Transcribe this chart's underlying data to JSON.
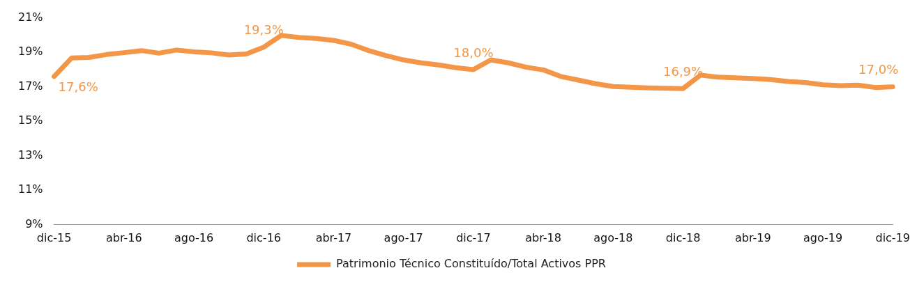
{
  "chart_data": {
    "type": "line",
    "categories": [
      "dic-15",
      null,
      null,
      null,
      "abr-16",
      null,
      null,
      null,
      "ago-16",
      null,
      null,
      null,
      "dic-16",
      null,
      null,
      null,
      "abr-17",
      null,
      null,
      null,
      "ago-17",
      null,
      null,
      null,
      "dic-17",
      null,
      null,
      null,
      "abr-18",
      null,
      null,
      null,
      "ago-18",
      null,
      null,
      null,
      "dic-18",
      null,
      null,
      null,
      "abr-19",
      null,
      null,
      null,
      "ago-19",
      null,
      null,
      null,
      "dic-19"
    ],
    "series": [
      {
        "name": "Patrimonio Técnico Constituído/Total Activos PPR",
        "color": "#f39647",
        "values": [
          17.6,
          18.67,
          18.7,
          18.87,
          18.98,
          19.1,
          18.95,
          19.13,
          19.03,
          18.97,
          18.84,
          18.9,
          19.3,
          19.98,
          19.86,
          19.8,
          19.69,
          19.47,
          19.1,
          18.81,
          18.56,
          18.39,
          18.27,
          18.11,
          18.0,
          18.56,
          18.39,
          18.14,
          17.98,
          17.6,
          17.39,
          17.18,
          17.02,
          16.98,
          16.94,
          16.92,
          16.9,
          17.68,
          17.56,
          17.52,
          17.48,
          17.42,
          17.31,
          17.25,
          17.12,
          17.07,
          17.1,
          16.96,
          17.0
        ],
        "value_labels": [
          "17,6%",
          null,
          null,
          null,
          null,
          null,
          null,
          null,
          null,
          null,
          null,
          null,
          "19,3%",
          null,
          null,
          null,
          null,
          null,
          null,
          null,
          null,
          null,
          null,
          null,
          "18,0%",
          null,
          null,
          null,
          null,
          null,
          null,
          null,
          null,
          null,
          null,
          null,
          "16,9%",
          null,
          null,
          null,
          null,
          null,
          null,
          null,
          null,
          null,
          null,
          null,
          "17,0%"
        ]
      }
    ],
    "ylim": [
      9,
      21
    ],
    "yticks": [
      {
        "value": 9,
        "label": "9%"
      },
      {
        "value": 11,
        "label": "11%"
      },
      {
        "value": 13,
        "label": "13%"
      },
      {
        "value": 15,
        "label": "15%"
      },
      {
        "value": 17,
        "label": "17%"
      },
      {
        "value": 19,
        "label": "19%"
      },
      {
        "value": 21,
        "label": "21%"
      }
    ],
    "grid": false,
    "legend": "bottom",
    "marker": "none",
    "line_style": "solid"
  }
}
